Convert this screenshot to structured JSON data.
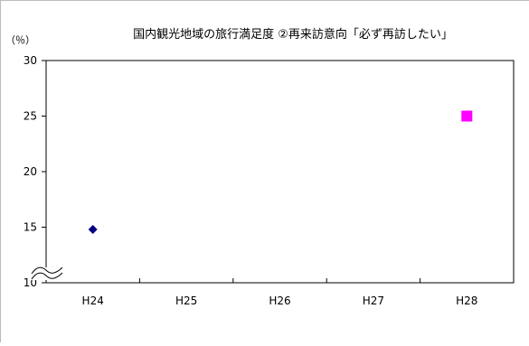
{
  "chart_data": {
    "type": "scatter",
    "title": "国内観光地域の旅行満足度 ②再来訪意向「必ず再訪したい」",
    "unit_label": "（％）",
    "categories": [
      "H24",
      "H25",
      "H26",
      "H27",
      "H28"
    ],
    "yticks": [
      10,
      15,
      20,
      25,
      30
    ],
    "ylim": [
      10,
      30
    ],
    "axis_break": true,
    "grid": false,
    "points": [
      {
        "x": "H24",
        "y": 14.8,
        "marker": "diamond",
        "color": "#000080"
      },
      {
        "x": "H28",
        "y": 25.0,
        "marker": "square",
        "color": "#ff00ff"
      }
    ]
  }
}
